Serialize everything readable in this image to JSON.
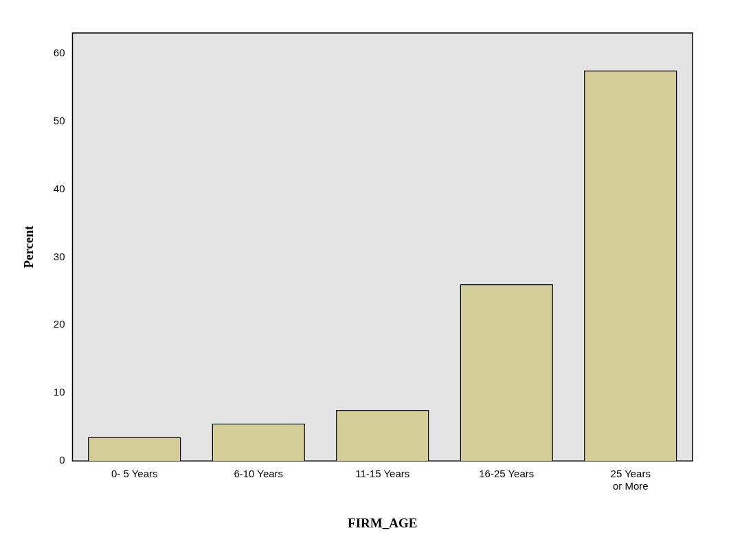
{
  "chart_data": {
    "type": "bar",
    "xlabel": "FIRM_AGE",
    "ylabel": "Percent",
    "categories": [
      "0- 5 Years",
      "6-10 Years",
      "11-15 Years",
      "16-25 Years",
      "25 Years or More"
    ],
    "values": [
      3.5,
      5.5,
      7.5,
      26.0,
      57.5
    ],
    "color": "#d3ce97",
    "ylim": [
      0,
      63
    ],
    "yticks": [
      0,
      10,
      20,
      30,
      40,
      50,
      60
    ],
    "grid": false,
    "legend": false
  }
}
